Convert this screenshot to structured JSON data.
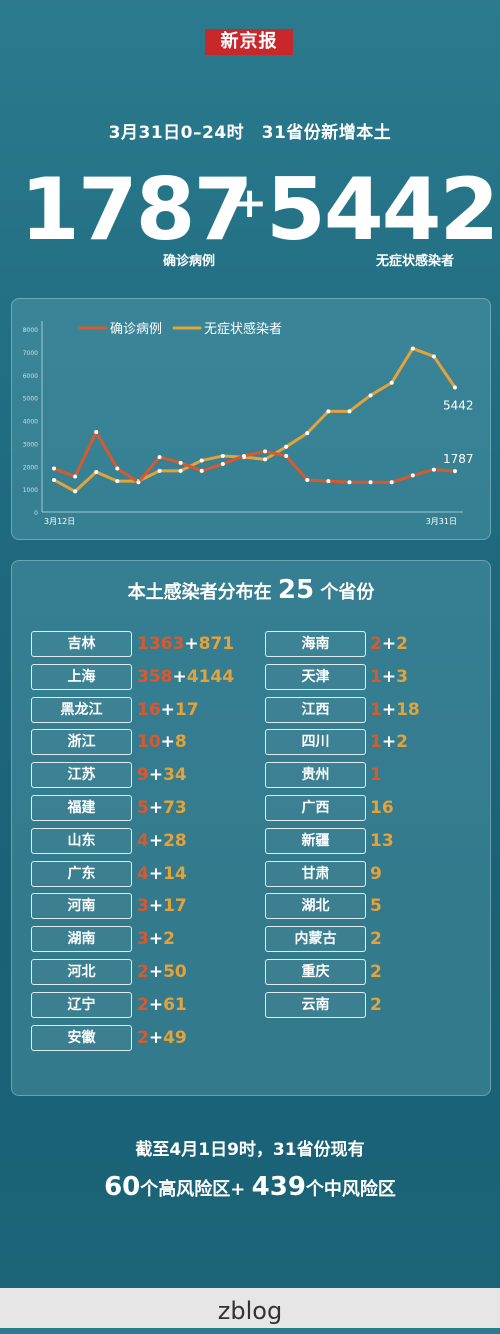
{
  "logo": "新京报",
  "headline": "3月31日0–24时　31省份新增本土",
  "big": {
    "confirmed": "1787",
    "plus": "+",
    "asymptomatic": "5442",
    "confirmed_label": "确诊病例",
    "asymptomatic_label": "无症状感染者"
  },
  "colors": {
    "confirmed": "#d9592e",
    "asymptomatic": "#e3a33a"
  },
  "chart_data": {
    "type": "line",
    "x_start_label": "3月12日",
    "x_end_label": "3月31日",
    "ylim": [
      0,
      8000
    ],
    "yticks": [
      0,
      1000,
      2000,
      3000,
      4000,
      5000,
      6000,
      7000,
      8000
    ],
    "series": [
      {
        "name": "确诊病例",
        "color": "#d9592e",
        "values": [
          1900,
          1550,
          3500,
          1900,
          1300,
          2400,
          2150,
          1800,
          2100,
          2450,
          2650,
          2450,
          1400,
          1350,
          1300,
          1300,
          1300,
          1600,
          1850,
          1787
        ]
      },
      {
        "name": "无症状感染者",
        "color": "#e3a33a",
        "values": [
          1400,
          900,
          1750,
          1350,
          1350,
          1800,
          1800,
          2250,
          2450,
          2400,
          2300,
          2850,
          3450,
          4400,
          4400,
          5100,
          5650,
          7150,
          6800,
          5442
        ]
      }
    ],
    "end_labels": {
      "asymptomatic": "5442",
      "confirmed": "1787"
    },
    "legend": "top"
  },
  "dist": {
    "title_pre": "本土感染者分布在",
    "title_num": "25",
    "title_post": "个省份",
    "left": [
      {
        "name": "吉林",
        "c": "1363",
        "a": "871"
      },
      {
        "name": "上海",
        "c": "358",
        "a": "4144"
      },
      {
        "name": "黑龙江",
        "c": "16",
        "a": "17"
      },
      {
        "name": "浙江",
        "c": "10",
        "a": "8"
      },
      {
        "name": "江苏",
        "c": "9",
        "a": "34"
      },
      {
        "name": "福建",
        "c": "5",
        "a": "73"
      },
      {
        "name": "山东",
        "c": "4",
        "a": "28"
      },
      {
        "name": "广东",
        "c": "4",
        "a": "14"
      },
      {
        "name": "河南",
        "c": "3",
        "a": "17"
      },
      {
        "name": "湖南",
        "c": "3",
        "a": "2"
      },
      {
        "name": "河北",
        "c": "2",
        "a": "50"
      },
      {
        "name": "辽宁",
        "c": "2",
        "a": "61"
      },
      {
        "name": "安徽",
        "c": "2",
        "a": "49"
      }
    ],
    "right": [
      {
        "name": "海南",
        "c": "2",
        "a": "2"
      },
      {
        "name": "天津",
        "c": "1",
        "a": "3"
      },
      {
        "name": "江西",
        "c": "1",
        "a": "18"
      },
      {
        "name": "四川",
        "c": "1",
        "a": "2"
      },
      {
        "name": "贵州",
        "c": "1",
        "a": ""
      },
      {
        "name": "广西",
        "c": "",
        "a": "16"
      },
      {
        "name": "新疆",
        "c": "",
        "a": "13"
      },
      {
        "name": "甘肃",
        "c": "",
        "a": "9"
      },
      {
        "name": "湖北",
        "c": "",
        "a": "5"
      },
      {
        "name": "内蒙古",
        "c": "",
        "a": "2"
      },
      {
        "name": "重庆",
        "c": "",
        "a": "2"
      },
      {
        "name": "云南",
        "c": "",
        "a": "2"
      }
    ]
  },
  "bottom": {
    "line1": "截至4月1日9时，31省份现有",
    "high_num": "60",
    "high_text": "个高风险区+",
    "mid_num": "439",
    "mid_text": "个中风险区"
  },
  "footer": "zblog"
}
